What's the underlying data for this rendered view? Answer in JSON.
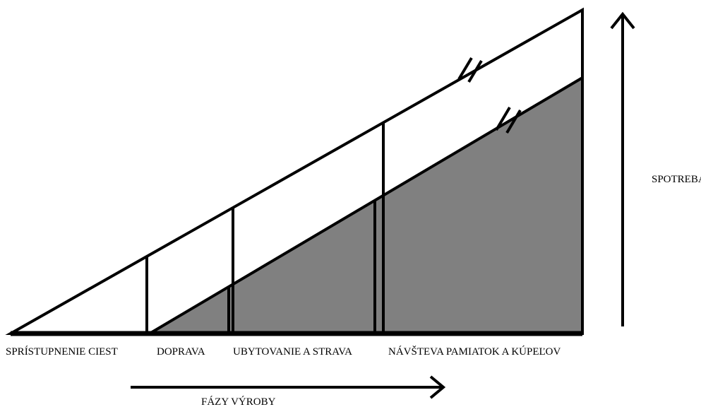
{
  "phases": [
    "SPRÍSTUPNENIE CIEST",
    "DOPRAVA",
    "UBYTOVANIE A STRAVA",
    "NÁVŠTEVA PAMIATOK A KÚPEĽOV"
  ],
  "x_axis_label": "FÁZY VÝROBY",
  "y_axis_label": "SPOTREBA"
}
